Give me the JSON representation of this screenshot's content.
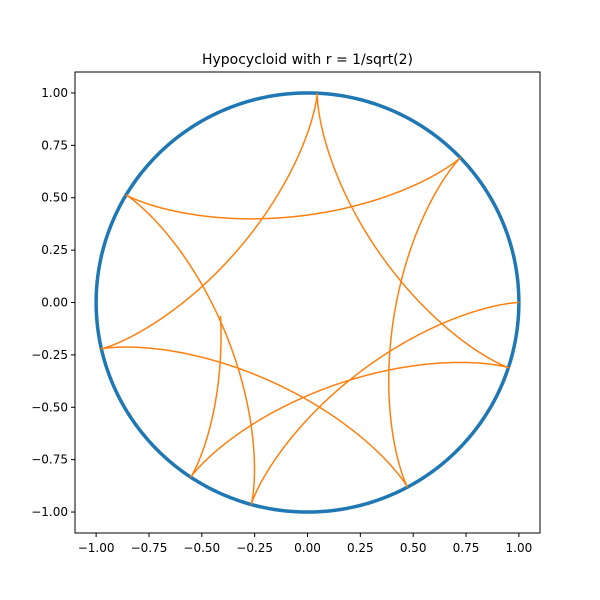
{
  "chart_data": {
    "type": "line",
    "title": "Hypocycloid with r = 1/sqrt(2)",
    "xlabel": "",
    "ylabel": "",
    "xlim": [
      -1.1,
      1.1
    ],
    "ylim": [
      -1.1,
      1.1
    ],
    "grid": false,
    "x_ticks": [
      -1.0,
      -0.75,
      -0.5,
      -0.25,
      0.0,
      0.25,
      0.5,
      0.75,
      1.0
    ],
    "y_ticks": [
      -1.0,
      -0.75,
      -0.5,
      -0.25,
      0.0,
      0.25,
      0.5,
      0.75,
      1.0
    ],
    "x_tick_labels": [
      "−1.00",
      "−0.75",
      "−0.50",
      "−0.25",
      "0.00",
      "0.25",
      "0.50",
      "0.75",
      "1.00"
    ],
    "y_tick_labels": [
      "−1.00",
      "−0.75",
      "−0.50",
      "−0.25",
      "0.00",
      "0.25",
      "0.50",
      "0.75",
      "1.00"
    ],
    "series": [
      {
        "kind": "circle",
        "color": "#1f77b4",
        "center": [
          0,
          0
        ],
        "radius": 1.0
      },
      {
        "kind": "hypocycloid",
        "color": "#ff7f0e",
        "R": 1.0,
        "r": 0.7071067811865476,
        "t_range": [
          0,
          37.7
        ]
      }
    ]
  }
}
